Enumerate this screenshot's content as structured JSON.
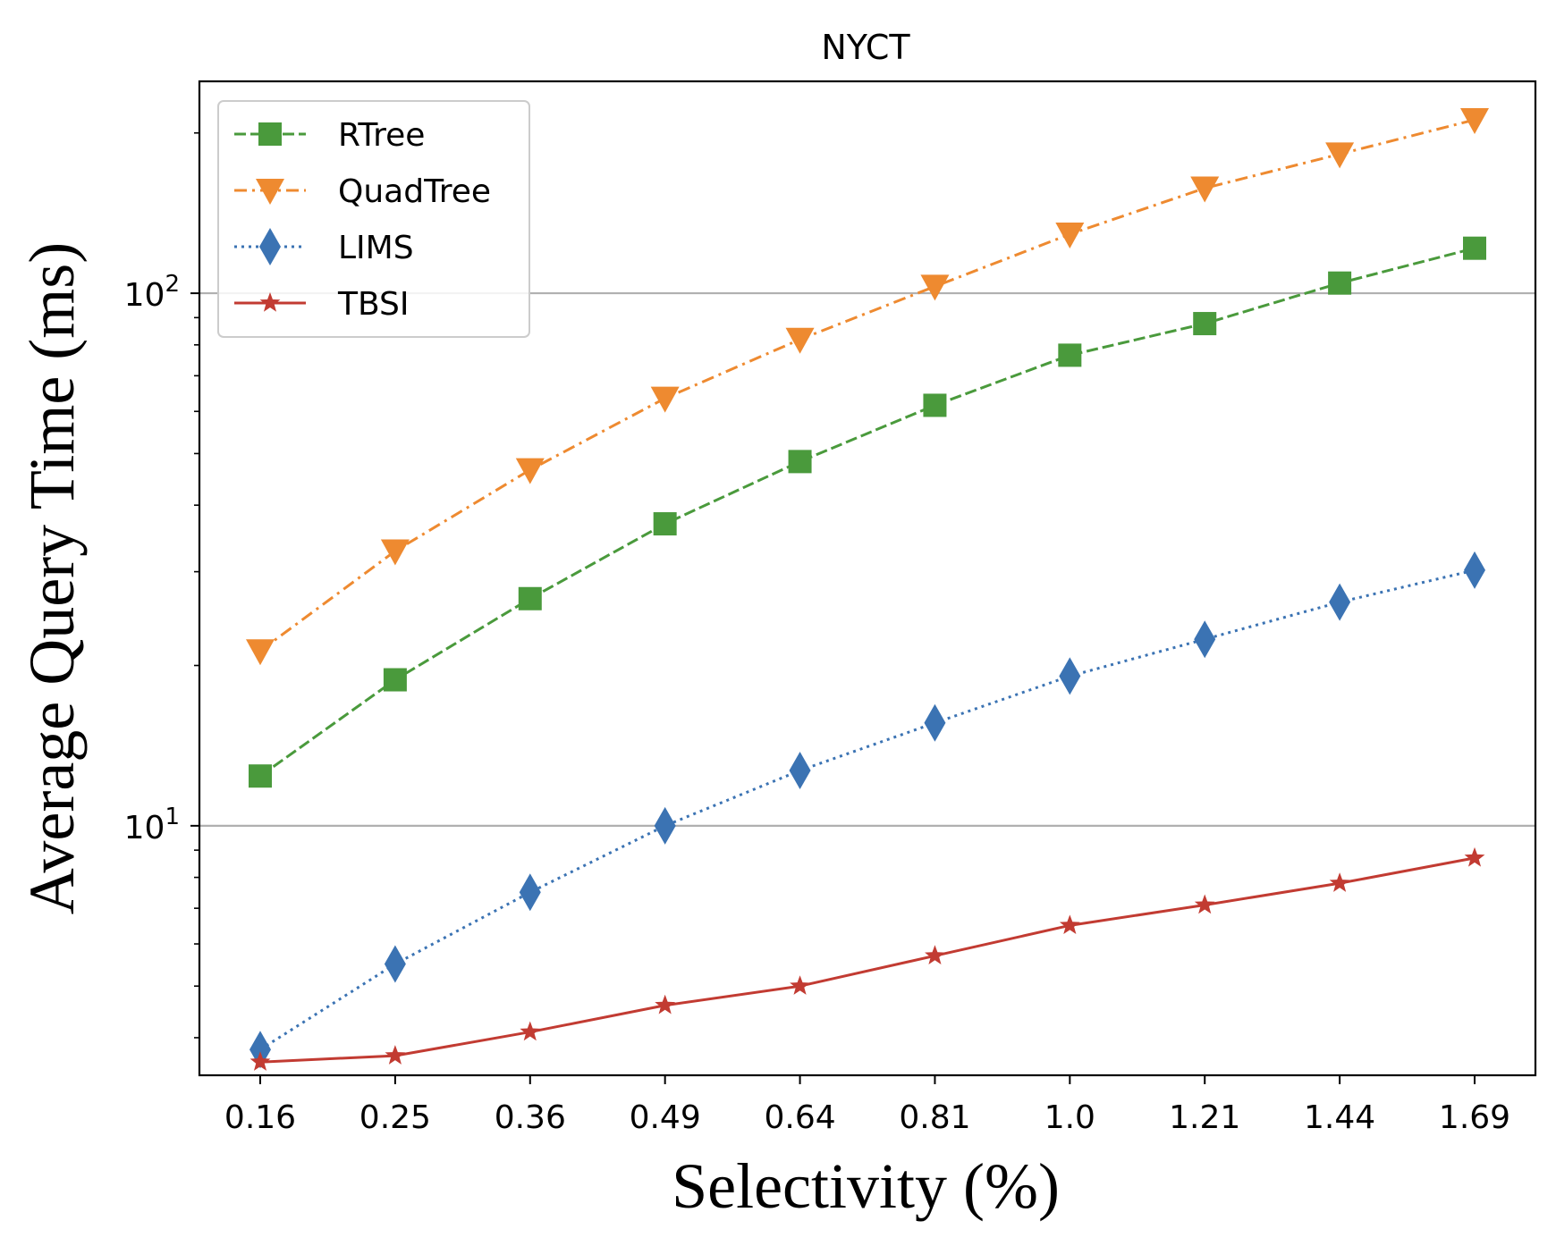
{
  "chart_data": {
    "type": "line",
    "title": "NYCT",
    "xlabel": "Selectivity (%)",
    "ylabel": "Average Query Time (ms)",
    "yscale": "log",
    "ylim": [
      3.4,
      250
    ],
    "grid": "y-major",
    "legend_position": "top-left",
    "categories": [
      "0.16",
      "0.25",
      "0.36",
      "0.49",
      "0.64",
      "0.81",
      "1.0",
      "1.21",
      "1.44",
      "1.69"
    ],
    "y_ticks": [
      {
        "value": 10,
        "base": "10",
        "exp": "1"
      },
      {
        "value": 100,
        "base": "10",
        "exp": "2"
      }
    ],
    "series": [
      {
        "name": "RTree",
        "color": "#4a9a3c",
        "marker": "square",
        "line": "dashed",
        "values": [
          12.4,
          18.8,
          26.7,
          36.9,
          48.3,
          61.6,
          76.5,
          87.7,
          104.5,
          121.5
        ]
      },
      {
        "name": "QuadTree",
        "color": "#ee8a30",
        "marker": "triangle-down",
        "line": "dashdot",
        "values": [
          21.3,
          32.8,
          46.6,
          63.5,
          81.9,
          103.0,
          129.1,
          157.5,
          182.5,
          211.7
        ]
      },
      {
        "name": "LIMS",
        "color": "#3b73b3",
        "marker": "thin-diamond",
        "line": "dotted",
        "values": [
          3.8,
          5.5,
          7.5,
          10.0,
          12.7,
          15.6,
          19.1,
          22.4,
          26.3,
          30.2
        ]
      },
      {
        "name": "TBSI",
        "color": "#c23b32",
        "marker": "star",
        "line": "solid",
        "values": [
          3.6,
          3.7,
          4.1,
          4.6,
          5.0,
          5.7,
          6.5,
          7.1,
          7.8,
          8.7
        ]
      }
    ]
  }
}
